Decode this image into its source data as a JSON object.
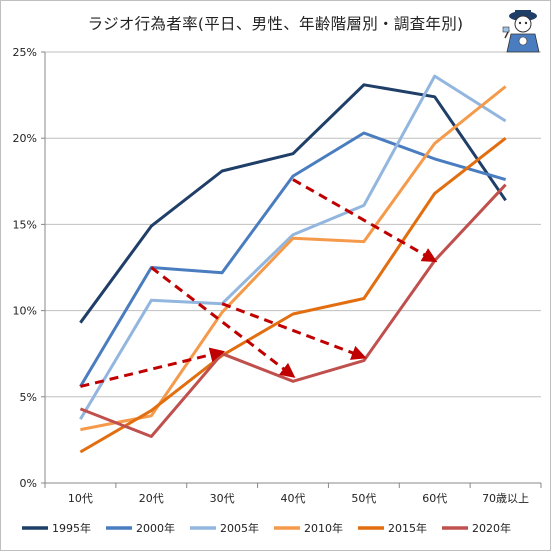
{
  "chart_data": {
    "type": "line",
    "title": "ラジオ行為者率(平日、男性、年齢階層別・調査年別)",
    "xlabel": "",
    "ylabel": "",
    "categories": [
      "10代",
      "20代",
      "30代",
      "40代",
      "50代",
      "60代",
      "70歳以上"
    ],
    "ylim": [
      0,
      25
    ],
    "yticks": [
      "0%",
      "5%",
      "10%",
      "15%",
      "20%",
      "25%"
    ],
    "grid": "horizontal",
    "legend_position": "bottom",
    "series": [
      {
        "name": "1995年",
        "color": "#1f3e68",
        "values": [
          9.3,
          14.9,
          18.1,
          19.1,
          23.1,
          22.4,
          16.4
        ]
      },
      {
        "name": "2000年",
        "color": "#4a7dc0",
        "values": [
          5.6,
          12.5,
          12.2,
          17.8,
          20.3,
          18.8,
          17.6
        ]
      },
      {
        "name": "2005年",
        "color": "#93b6df",
        "values": [
          3.7,
          10.6,
          10.4,
          14.4,
          16.1,
          23.6,
          21.0
        ]
      },
      {
        "name": "2010年",
        "color": "#f59a4a",
        "values": [
          3.1,
          3.9,
          9.9,
          14.2,
          14.0,
          19.7,
          23.0
        ]
      },
      {
        "name": "2015年",
        "color": "#e26e10",
        "values": [
          1.8,
          4.2,
          7.4,
          9.8,
          10.7,
          16.8,
          20.0
        ]
      },
      {
        "name": "2020年",
        "color": "#c0504d",
        "values": [
          4.3,
          2.7,
          7.5,
          5.9,
          7.1,
          12.9,
          17.3
        ]
      }
    ],
    "annotations": [
      {
        "type": "arrow",
        "color": "#c00000",
        "style": "dashed",
        "from": {
          "x": "10代",
          "y": 5.6
        },
        "to": {
          "x": "30代",
          "y": 7.6
        }
      },
      {
        "type": "arrow",
        "color": "#c00000",
        "style": "dashed",
        "from": {
          "x": "20代",
          "y": 12.5
        },
        "to": {
          "x": "40代",
          "y": 6.2
        }
      },
      {
        "type": "arrow",
        "color": "#c00000",
        "style": "dashed",
        "from": {
          "x": "30代",
          "y": 10.4
        },
        "to": {
          "x": "50代",
          "y": 7.3
        }
      },
      {
        "type": "arrow",
        "color": "#c00000",
        "style": "dashed",
        "from": {
          "x": "40代",
          "y": 17.6
        },
        "to": {
          "x": "60代",
          "y": 12.9
        }
      }
    ]
  },
  "mascot": {
    "icon": "mascot-character-icon"
  }
}
